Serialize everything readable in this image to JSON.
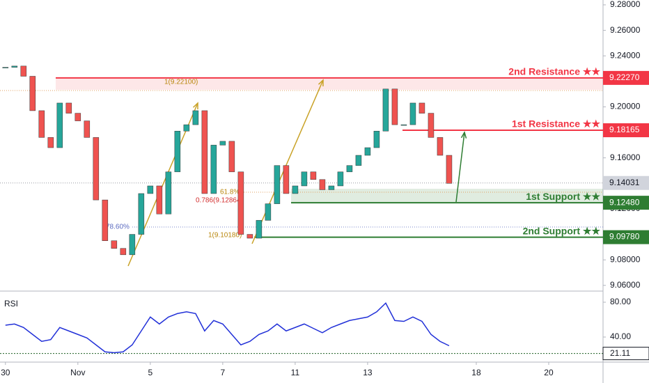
{
  "chart_data": [
    {
      "type": "candlestick",
      "x": [
        0,
        0.25,
        0.5,
        0.75,
        1,
        1.25,
        1.5,
        1.75,
        2,
        2.25,
        2.5,
        2.75,
        3,
        3.25,
        3.5,
        3.75,
        4,
        4.25,
        4.5,
        4.75,
        5,
        5.25,
        5.5,
        5.75,
        6,
        6.25,
        6.5,
        6.75,
        7,
        7.25,
        7.5,
        7.75,
        8,
        8.25,
        8.5,
        8.75,
        9,
        9.25,
        9.5,
        9.75,
        10,
        10.25,
        10.5,
        10.75,
        11,
        11.25,
        11.5,
        11.75,
        12,
        12.25
      ],
      "values": [
        9.231,
        9.232,
        9.224,
        9.197,
        9.176,
        9.168,
        9.203,
        9.195,
        9.189,
        9.176,
        9.127,
        9.095,
        9.089,
        9.084,
        9.1,
        9.132,
        9.138,
        9.116,
        9.149,
        9.181,
        9.186,
        9.197,
        9.132,
        9.17,
        9.173,
        9.149,
        9.1,
        9.097,
        9.111,
        9.124,
        9.154,
        9.132,
        9.138,
        9.149,
        9.143,
        9.135,
        9.138,
        9.149,
        9.154,
        9.162,
        9.168,
        9.181,
        9.214,
        9.186,
        9.186,
        9.203,
        9.195,
        9.176,
        9.162,
        9.14
      ],
      "up_color": "#26a69a",
      "down_color": "#ef5350",
      "xlim": [
        -0.15,
        16.5
      ],
      "xticks": [
        {
          "value": 0,
          "label": "30"
        },
        {
          "value": 2,
          "label": "Nov"
        },
        {
          "value": 4,
          "label": "5"
        },
        {
          "value": 6,
          "label": "7"
        },
        {
          "value": 8,
          "label": "11"
        },
        {
          "value": 10,
          "label": "13"
        },
        {
          "value": 13,
          "label": "18"
        },
        {
          "value": 15,
          "label": "20"
        }
      ],
      "ylim": [
        9.0577,
        9.2838
      ],
      "yticks": [
        {
          "value": 9.28,
          "label": "9.28000"
        },
        {
          "value": 9.26,
          "label": "9.26000"
        },
        {
          "value": 9.24,
          "label": "9.24000"
        },
        {
          "value": 9.2,
          "label": "9.20000"
        },
        {
          "value": 9.16,
          "label": "9.16000"
        },
        {
          "value": 9.12,
          "label": "9.12000"
        },
        {
          "value": 9.08,
          "label": "9.08000"
        },
        {
          "value": 9.06,
          "label": "9.06000"
        }
      ],
      "levels": [
        {
          "value": 9.2227,
          "label": "9.22270",
          "text": "2nd Resistance ★★",
          "color": "#f23645"
        },
        {
          "value": 9.18165,
          "label": "9.18165",
          "text": "1st Resistance ★★",
          "color": "#f23645"
        },
        {
          "value": 9.1248,
          "label": "9.12480",
          "text": "1st Support ★★",
          "color": "#2e7d32"
        },
        {
          "value": 9.0978,
          "label": "9.09780",
          "text": "2nd Support ★★",
          "color": "#2e7d32"
        }
      ],
      "current": {
        "value": 9.14031,
        "label": "9.14031"
      },
      "annotations": [
        "1(9.22100)",
        "61.8%",
        "0.786(9.12864)",
        "78.60%",
        "1(9.10180)"
      ]
    },
    {
      "type": "line",
      "title": "RSI",
      "color": "#2130d8",
      "x": [
        0,
        0.25,
        0.5,
        0.75,
        1,
        1.25,
        1.5,
        1.75,
        2,
        2.25,
        2.5,
        2.75,
        3,
        3.25,
        3.5,
        3.75,
        4,
        4.25,
        4.5,
        4.75,
        5,
        5.25,
        5.5,
        5.75,
        6,
        6.25,
        6.5,
        6.75,
        7,
        7.25,
        7.5,
        7.75,
        8,
        8.25,
        8.5,
        8.75,
        9,
        9.25,
        9.5,
        9.75,
        10,
        10.25,
        10.5,
        10.75,
        11,
        11.25,
        11.5,
        11.75,
        12,
        12.25
      ],
      "values": [
        53.6,
        55,
        51,
        43,
        35,
        37,
        51,
        47,
        43,
        39,
        31,
        23,
        22,
        23,
        31,
        47,
        63,
        55,
        63,
        67,
        69,
        67,
        47,
        59,
        55,
        43,
        31,
        35,
        43,
        47,
        55,
        47,
        51,
        55,
        50,
        45,
        51,
        55,
        59,
        61,
        63,
        69,
        79,
        59,
        58,
        63,
        58,
        43,
        35,
        30
      ],
      "ylim": [
        12.8,
        91.2
      ],
      "yticks": [
        {
          "value": 80,
          "label": "80.00"
        },
        {
          "value": 40,
          "label": "40.00"
        }
      ],
      "marker": {
        "value": 21.11,
        "label": "21.11"
      }
    }
  ]
}
